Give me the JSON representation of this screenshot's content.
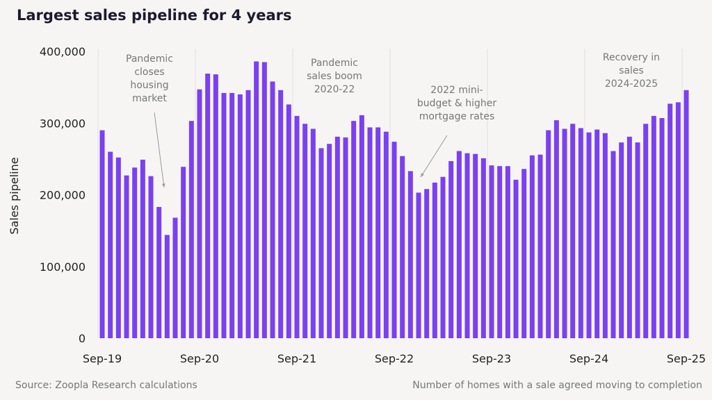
{
  "title": "Largest sales pipeline for 4 years",
  "source": "Source: Zoopla Research calculations",
  "note": "Number of homes with a sale agreed moving to completion",
  "colors": {
    "bar": "#7a40f2",
    "annotation": "#777777",
    "background": "#f6f5f3"
  },
  "chart_data": {
    "type": "bar",
    "title": "Largest sales pipeline for 4 years",
    "ylabel": "Sales pipeline",
    "xlabel": "",
    "ylim": [
      0,
      400000
    ],
    "yticks": [
      "0",
      "100,000",
      "200,000",
      "300,000",
      "400,000"
    ],
    "ytick_values": [
      0,
      100000,
      200000,
      300000,
      400000
    ],
    "xtick_labels": [
      "Sep-19",
      "Sep-20",
      "Sep-21",
      "Sep-22",
      "Sep-23",
      "Sep-24",
      "Sep-25"
    ],
    "xtick_indices": [
      0,
      12,
      24,
      36,
      48,
      60,
      72
    ],
    "grid": "vertical lines at each September",
    "start_month": "Sep-19",
    "end_month": "Sep-25",
    "values": [
      290000,
      260000,
      252000,
      227000,
      238000,
      249000,
      226000,
      183000,
      144000,
      168000,
      239000,
      303000,
      347000,
      369000,
      368000,
      342000,
      342000,
      340000,
      346000,
      386000,
      385000,
      358000,
      346000,
      326000,
      310000,
      299000,
      292000,
      265000,
      271000,
      281000,
      280000,
      303000,
      311000,
      294000,
      294000,
      288000,
      274000,
      254000,
      233000,
      203000,
      208000,
      217000,
      225000,
      247000,
      261000,
      258000,
      257000,
      251000,
      241000,
      240000,
      240000,
      221000,
      236000,
      255000,
      256000,
      290000,
      304000,
      292000,
      299000,
      293000,
      287000,
      291000,
      286000,
      261000,
      273000,
      281000,
      273000,
      299000,
      310000,
      307000,
      327000,
      329000,
      346000
    ],
    "annotations": [
      {
        "lines": [
          "Pandemic",
          "closes",
          "housing",
          "market"
        ],
        "arrow_to_index": 8
      },
      {
        "lines": [
          "Pandemic",
          "sales boom",
          "2020-22"
        ]
      },
      {
        "lines": [
          "2022 mini-",
          "budget & higher",
          "mortgage rates"
        ],
        "arrow_to_index": 39
      },
      {
        "lines": [
          "Recovery in",
          "sales",
          "2024-2025"
        ]
      }
    ]
  }
}
